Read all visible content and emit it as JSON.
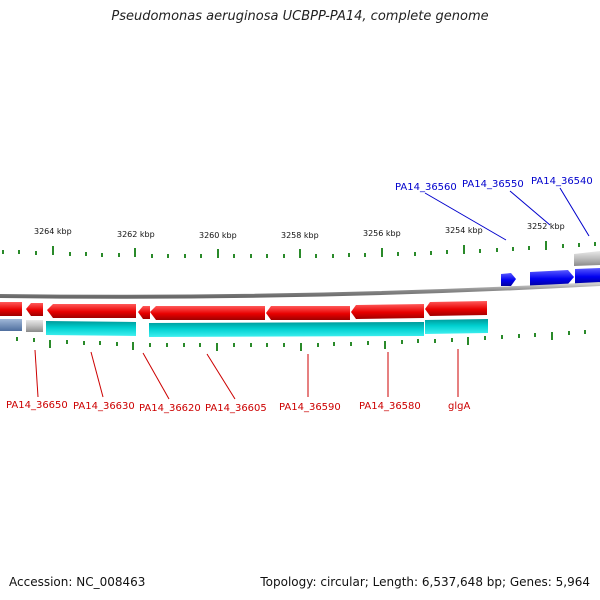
{
  "title": "Pseudomonas aeruginosa UCBPP-PA14, complete genome",
  "footer": {
    "accession": "Accession: NC_008463",
    "summary": "Topology: circular; Length: 6,537,648 bp; Genes: 5,964"
  },
  "colors": {
    "forward_cds": "#0000ff",
    "reverse_cds": "#ff0000",
    "reverse_feature": "#00c8c8",
    "gene_other": "#b8b8b8",
    "backbone": "#888888",
    "tick": "#2a8a2a",
    "forward_label": "#0000cc",
    "reverse_label": "#cc0000"
  },
  "ruler_labels": [
    "3264 kbp",
    "3262 kbp",
    "3260 kbp",
    "3258 kbp",
    "3256 kbp",
    "3254 kbp",
    "3252 kbp"
  ],
  "forward_labels": [
    "PA14_36560",
    "PA14_36550",
    "PA14_36540"
  ],
  "reverse_labels": [
    "PA14_36650",
    "PA14_36630",
    "PA14_36620",
    "PA14_36605",
    "PA14_36590",
    "PA14_36580",
    "glgA"
  ]
}
